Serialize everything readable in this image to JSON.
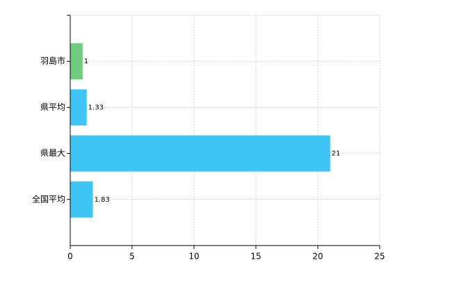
{
  "chart_data": {
    "type": "hbar",
    "categories": [
      "羽島市",
      "県平均",
      "県最大",
      "全国平均"
    ],
    "values": [
      1,
      1.33,
      21,
      1.83
    ],
    "colors": [
      "#6dcc7e",
      "#3ec5f5",
      "#3ec5f5",
      "#3ec5f5"
    ],
    "xlim": [
      0,
      25
    ],
    "xticks": [
      0,
      5,
      10,
      15,
      20,
      25
    ],
    "grid": true
  }
}
